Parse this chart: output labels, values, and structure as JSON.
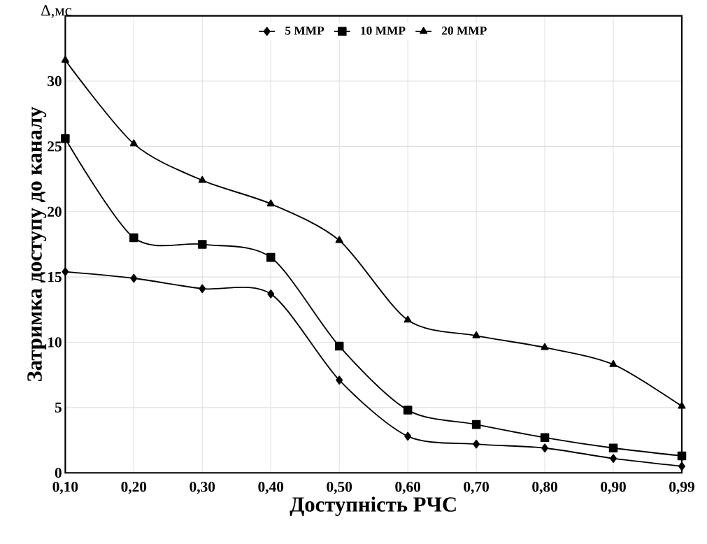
{
  "chart_data": {
    "type": "line",
    "xlabel": "Доступність РЧС",
    "ylabel": "Затримка доступу до каналу",
    "annotations": [
      "Δ,мс"
    ],
    "categories": [
      "0,10",
      "0,20",
      "0,30",
      "0,40",
      "0,50",
      "0,60",
      "0,70",
      "0,80",
      "0,90",
      "0,99"
    ],
    "series": [
      {
        "name": "5 MMP",
        "color": "#000000",
        "marker": "diamond",
        "values": [
          15.4,
          14.9,
          14.1,
          13.7,
          7.1,
          2.8,
          2.2,
          1.9,
          1.1,
          0.5
        ]
      },
      {
        "name": "10 MMP",
        "color": "#000000",
        "marker": "square",
        "values": [
          25.6,
          18.0,
          17.5,
          16.5,
          9.7,
          4.8,
          3.7,
          2.7,
          1.9,
          1.3
        ]
      },
      {
        "name": "20 MMP",
        "color": "#000000",
        "marker": "triangle",
        "values": [
          31.6,
          25.2,
          22.4,
          20.6,
          17.8,
          11.7,
          10.5,
          9.6,
          8.3,
          5.1
        ]
      }
    ],
    "ylim": [
      0,
      35
    ],
    "yticks": [
      0,
      5,
      10,
      15,
      20,
      25,
      30
    ],
    "grid": true,
    "legend": "top"
  }
}
